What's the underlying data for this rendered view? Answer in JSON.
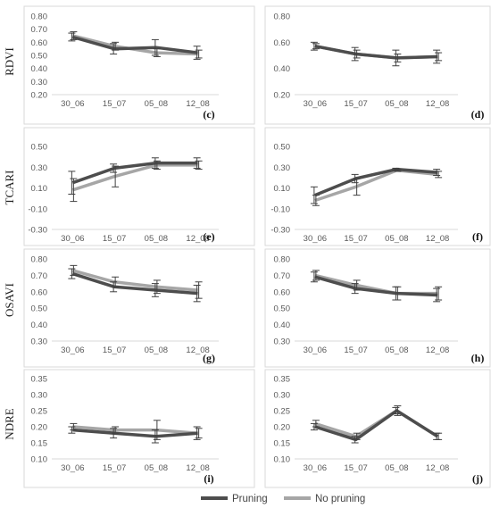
{
  "colors": {
    "pruning": "#4d4d4d",
    "no_pruning": "#a6a6a6",
    "frame": "#d9d9d9",
    "error_bar": "#404040"
  },
  "legend": [
    {
      "label": "Pruning",
      "color": "#4d4d4d"
    },
    {
      "label": "No pruning",
      "color": "#a6a6a6"
    }
  ],
  "chart_data": [
    {
      "type": "line",
      "panel": "(c)",
      "ylabel": "RDVI",
      "categories": [
        "30_06",
        "15_07",
        "05_08",
        "12_08"
      ],
      "ylim": [
        0.2,
        0.8
      ],
      "yticks": [
        "0.20",
        "0.30",
        "0.40",
        "0.50",
        "0.60",
        "0.70",
        "0.80"
      ],
      "ytick_values": [
        0.2,
        0.3,
        0.4,
        0.5,
        0.6,
        0.7,
        0.8
      ],
      "series": [
        {
          "name": "Pruning",
          "values": [
            0.64,
            0.55,
            0.56,
            0.52
          ],
          "errors": [
            0.03,
            0.04,
            0.06,
            0.05
          ]
        },
        {
          "name": "No pruning",
          "values": [
            0.65,
            0.57,
            0.52,
            0.51
          ],
          "errors": [
            0.03,
            0.03,
            0.03,
            0.03
          ]
        }
      ]
    },
    {
      "type": "line",
      "panel": "(d)",
      "ylabel": "",
      "categories": [
        "30_06",
        "15_07",
        "05_08",
        "12_08"
      ],
      "ylim": [
        0.2,
        0.8
      ],
      "yticks": [
        "0.20",
        "0.40",
        "0.60",
        "0.80"
      ],
      "ytick_values": [
        0.2,
        0.4,
        0.6,
        0.8
      ],
      "series": [
        {
          "name": "Pruning",
          "values": [
            0.57,
            0.51,
            0.48,
            0.49
          ],
          "errors": [
            0.03,
            0.05,
            0.06,
            0.05
          ]
        },
        {
          "name": "No pruning",
          "values": [
            0.57,
            0.51,
            0.48,
            0.49
          ],
          "errors": [
            0.02,
            0.03,
            0.03,
            0.03
          ]
        }
      ]
    },
    {
      "type": "line",
      "panel": "(e)",
      "ylabel": "TCARI",
      "categories": [
        "30_06",
        "15_07",
        "05_08",
        "12_08"
      ],
      "ylim": [
        -0.3,
        0.5
      ],
      "yticks": [
        "0.50",
        "0.30",
        "0.10",
        "-0.10",
        "-0.30"
      ],
      "ytick_values": [
        0.5,
        0.3,
        0.1,
        -0.1,
        -0.3
      ],
      "series": [
        {
          "name": "Pruning",
          "values": [
            0.15,
            0.29,
            0.34,
            0.34
          ],
          "errors": [
            0.11,
            0.04,
            0.05,
            0.05
          ]
        },
        {
          "name": "No pruning",
          "values": [
            0.08,
            0.21,
            0.32,
            0.32
          ],
          "errors": [
            0.11,
            0.1,
            0.04,
            0.04
          ]
        }
      ]
    },
    {
      "type": "line",
      "panel": "(f)",
      "ylabel": "",
      "categories": [
        "30_06",
        "15_07",
        "05_08",
        "12_08"
      ],
      "ylim": [
        -0.3,
        0.5
      ],
      "yticks": [
        "0.50",
        "0.30",
        "0.10",
        "-0.10",
        "-0.30"
      ],
      "ytick_values": [
        0.5,
        0.3,
        0.1,
        -0.1,
        -0.3
      ],
      "series": [
        {
          "name": "Pruning",
          "values": [
            0.03,
            0.19,
            0.28,
            0.25
          ],
          "errors": [
            0.08,
            0.04,
            0.01,
            0.03
          ]
        },
        {
          "name": "No pruning",
          "values": [
            -0.02,
            0.11,
            0.27,
            0.23
          ],
          "errors": [
            0.05,
            0.08,
            0.01,
            0.03
          ]
        }
      ]
    },
    {
      "type": "line",
      "panel": "(g)",
      "ylabel": "OSAVI",
      "categories": [
        "30_06",
        "15_07",
        "05_08",
        "12_08"
      ],
      "ylim": [
        0.3,
        0.8
      ],
      "yticks": [
        "0.80",
        "0.70",
        "0.60",
        "0.50",
        "0.40",
        "0.30"
      ],
      "ytick_values": [
        0.8,
        0.7,
        0.6,
        0.5,
        0.4,
        0.3
      ],
      "series": [
        {
          "name": "Pruning",
          "values": [
            0.71,
            0.63,
            0.61,
            0.59
          ],
          "errors": [
            0.03,
            0.03,
            0.04,
            0.05
          ]
        },
        {
          "name": "No pruning",
          "values": [
            0.73,
            0.66,
            0.63,
            0.61
          ],
          "errors": [
            0.03,
            0.03,
            0.04,
            0.05
          ]
        }
      ]
    },
    {
      "type": "line",
      "panel": "(h)",
      "ylabel": "",
      "categories": [
        "30_06",
        "15_07",
        "05_08",
        "12_08"
      ],
      "ylim": [
        0.3,
        0.8
      ],
      "yticks": [
        "0.80",
        "0.70",
        "0.60",
        "0.50",
        "0.40",
        "0.30"
      ],
      "ytick_values": [
        0.8,
        0.7,
        0.6,
        0.5,
        0.4,
        0.3
      ],
      "series": [
        {
          "name": "Pruning",
          "values": [
            0.69,
            0.62,
            0.59,
            0.58
          ],
          "errors": [
            0.03,
            0.03,
            0.04,
            0.04
          ]
        },
        {
          "name": "No pruning",
          "values": [
            0.7,
            0.64,
            0.59,
            0.59
          ],
          "errors": [
            0.03,
            0.03,
            0.04,
            0.04
          ]
        }
      ]
    },
    {
      "type": "line",
      "panel": "(i)",
      "ylabel": "NDRE",
      "categories": [
        "30_06",
        "15_07",
        "05_08",
        "12_08"
      ],
      "ylim": [
        0.1,
        0.35
      ],
      "yticks": [
        "0.35",
        "0.30",
        "0.25",
        "0.20",
        "0.15",
        "0.10"
      ],
      "ytick_values": [
        0.35,
        0.3,
        0.25,
        0.2,
        0.15,
        0.1
      ],
      "series": [
        {
          "name": "Pruning",
          "values": [
            0.19,
            0.18,
            0.17,
            0.18
          ],
          "errors": [
            0.01,
            0.015,
            0.02,
            0.02
          ]
        },
        {
          "name": "No pruning",
          "values": [
            0.2,
            0.19,
            0.19,
            0.18
          ],
          "errors": [
            0.01,
            0.01,
            0.03,
            0.015
          ]
        }
      ]
    },
    {
      "type": "line",
      "panel": "(j)",
      "ylabel": "",
      "categories": [
        "30_06",
        "15_07",
        "05_08",
        "12_08"
      ],
      "ylim": [
        0.1,
        0.35
      ],
      "yticks": [
        "0.35",
        "0.30",
        "0.25",
        "0.20",
        "0.15",
        "0.10"
      ],
      "ytick_values": [
        0.35,
        0.3,
        0.25,
        0.2,
        0.15,
        0.1
      ],
      "series": [
        {
          "name": "Pruning",
          "values": [
            0.2,
            0.16,
            0.25,
            0.17
          ],
          "errors": [
            0.01,
            0.01,
            0.01,
            0.01
          ]
        },
        {
          "name": "No pruning",
          "values": [
            0.21,
            0.17,
            0.25,
            0.17
          ],
          "errors": [
            0.01,
            0.01,
            0.015,
            0.01
          ]
        }
      ]
    }
  ]
}
